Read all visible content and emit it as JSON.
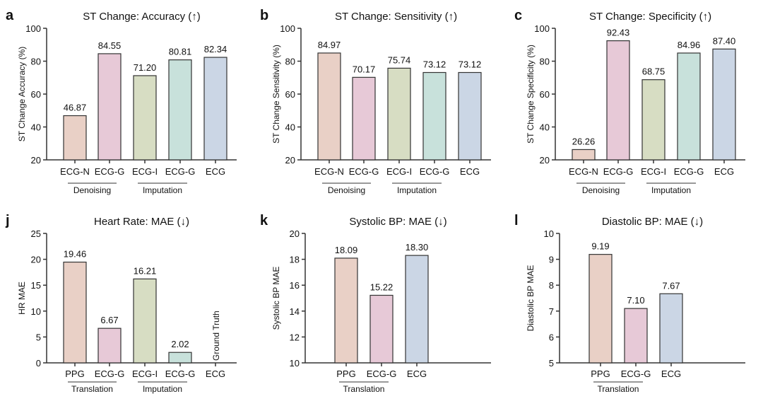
{
  "chart_data": [
    {
      "panel_letter": "a",
      "type": "bar",
      "title": "ST Change: Accuracy (↑)",
      "ylabel": "ST Change Accuracy (%)",
      "ylim": [
        20,
        100
      ],
      "yticks": [
        20,
        40,
        60,
        80,
        100
      ],
      "categories": [
        "ECG-N",
        "ECG-G",
        "ECG-I",
        "ECG-G",
        "ECG"
      ],
      "values": [
        46.87,
        84.55,
        71.2,
        80.81,
        82.34
      ],
      "value_labels": [
        "46.87",
        "84.55",
        "71.20",
        "80.81",
        "82.34"
      ],
      "groups": [
        {
          "label": "Denoising",
          "from": 0,
          "to": 1
        },
        {
          "label": "Imputation",
          "from": 2,
          "to": 3
        }
      ]
    },
    {
      "panel_letter": "b",
      "type": "bar",
      "title": "ST Change: Sensitivity (↑)",
      "ylabel": "ST Change Sensitivity (%)",
      "ylim": [
        20,
        100
      ],
      "yticks": [
        20,
        40,
        60,
        80,
        100
      ],
      "categories": [
        "ECG-N",
        "ECG-G",
        "ECG-I",
        "ECG-G",
        "ECG"
      ],
      "values": [
        84.97,
        70.17,
        75.74,
        73.12,
        73.12
      ],
      "value_labels": [
        "84.97",
        "70.17",
        "75.74",
        "73.12",
        "73.12"
      ],
      "groups": [
        {
          "label": "Denoising",
          "from": 0,
          "to": 1
        },
        {
          "label": "Imputation",
          "from": 2,
          "to": 3
        }
      ]
    },
    {
      "panel_letter": "c",
      "type": "bar",
      "title": "ST Change: Specificity (↑)",
      "ylabel": "ST Change Specificity (%)",
      "ylim": [
        20,
        100
      ],
      "yticks": [
        20,
        40,
        60,
        80,
        100
      ],
      "categories": [
        "ECG-N",
        "ECG-G",
        "ECG-I",
        "ECG-G",
        "ECG"
      ],
      "values": [
        26.26,
        92.43,
        68.75,
        84.96,
        87.4
      ],
      "value_labels": [
        "26.26",
        "92.43",
        "68.75",
        "84.96",
        "87.40"
      ],
      "groups": [
        {
          "label": "Denoising",
          "from": 0,
          "to": 1
        },
        {
          "label": "Imputation",
          "from": 2,
          "to": 3
        }
      ]
    },
    {
      "panel_letter": "j",
      "type": "bar",
      "title": "Heart Rate: MAE (↓)",
      "ylabel": "HR MAE",
      "ylim": [
        0,
        25
      ],
      "yticks": [
        0,
        5,
        10,
        15,
        20,
        25
      ],
      "categories": [
        "PPG",
        "ECG-G",
        "ECG-I",
        "ECG-G",
        "ECG"
      ],
      "values": [
        19.46,
        6.67,
        16.21,
        2.02,
        null
      ],
      "value_labels": [
        "19.46",
        "6.67",
        "16.21",
        "2.02",
        "Ground Truth"
      ],
      "groups": [
        {
          "label": "Translation",
          "from": 0,
          "to": 1
        },
        {
          "label": "Imputation",
          "from": 2,
          "to": 3
        }
      ]
    },
    {
      "panel_letter": "k",
      "type": "bar",
      "title": "Systolic BP: MAE  (↓)",
      "ylabel": "Systolic BP MAE",
      "ylim": [
        10,
        20
      ],
      "yticks": [
        10,
        12,
        14,
        16,
        18,
        20
      ],
      "categories": [
        "PPG",
        "ECG-G",
        "ECG"
      ],
      "values": [
        18.09,
        15.22,
        18.3
      ],
      "value_labels": [
        "18.09",
        "15.22",
        "18.30"
      ],
      "groups": [
        {
          "label": "Translation",
          "from": 0,
          "to": 1
        }
      ]
    },
    {
      "panel_letter": "l",
      "type": "bar",
      "title": "Diastolic BP: MAE  (↓)",
      "ylabel": "Diastolic BP MAE",
      "ylim": [
        5,
        10
      ],
      "yticks": [
        5,
        6,
        7,
        8,
        9,
        10
      ],
      "categories": [
        "PPG",
        "ECG-G",
        "ECG"
      ],
      "values": [
        9.19,
        7.1,
        7.67
      ],
      "value_labels": [
        "9.19",
        "7.10",
        "7.67"
      ],
      "groups": [
        {
          "label": "Translation",
          "from": 0,
          "to": 1
        }
      ]
    }
  ],
  "colors": {
    "five": [
      "#e9d0c6",
      "#e7c9d7",
      "#d7ddc3",
      "#c8e1db",
      "#cbd6e5"
    ],
    "three": [
      "#e9d0c6",
      "#e7c9d7",
      "#cbd6e5"
    ],
    "stroke": "#333333"
  }
}
